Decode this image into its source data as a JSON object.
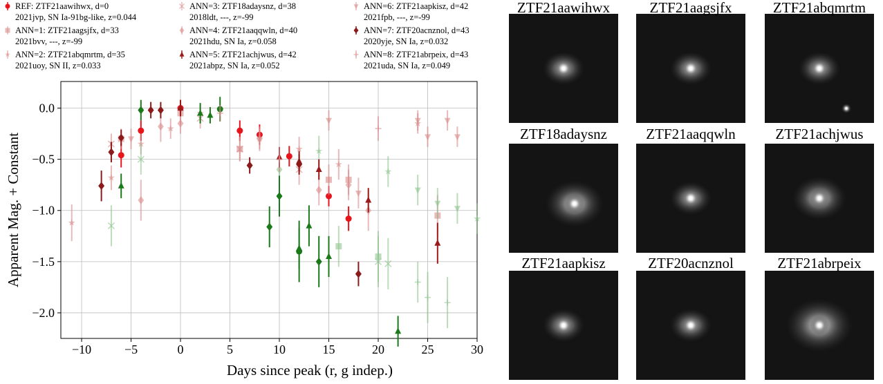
{
  "chart_data": {
    "type": "scatter",
    "xlabel": "Days since peak (r, g indep.)",
    "ylabel": "Apparent Mag. + Constant",
    "xlim": [
      -12.1,
      30
    ],
    "ylim": [
      -2.25,
      0.26
    ],
    "xticks": [
      {
        "value": -10,
        "label": "−10"
      },
      {
        "value": -5,
        "label": "−5"
      },
      0,
      5,
      10,
      15,
      20,
      25,
      30
    ],
    "yticks": [
      {
        "value": 0,
        "label": "0.0"
      },
      {
        "value": -0.5,
        "label": "−0.5"
      },
      {
        "value": -1,
        "label": "−1.0"
      },
      {
        "value": -1.5,
        "label": "−1.5"
      },
      {
        "value": -2,
        "label": "−2.0"
      }
    ],
    "grid": true,
    "series": [
      {
        "name": "REF: ZTF21aawihwx, d=0\n2021jvp, SN Ia-91bg-like, z=0.044",
        "marker": "circle",
        "color": "#e8141c",
        "g_color": "#1a7a1a",
        "x": [
          -6,
          -4,
          0,
          6,
          8,
          11,
          15,
          17
        ],
        "values": [
          -0.46,
          -0.22,
          0.0,
          -0.22,
          -0.26,
          -0.47,
          -0.86,
          -1.08
        ],
        "errors": [
          0.12,
          0.1,
          0.08,
          0.1,
          0.1,
          0.1,
          0.1,
          0.12
        ],
        "g_x": [
          4,
          12
        ],
        "g_values": [
          -0.01,
          -1.4
        ],
        "g_errors": [
          0.12,
          0.3
        ]
      },
      {
        "name": "ANN=1: ZTF21aagsjfx, d=33\n2021bvv, ---, z=-99",
        "marker": "square",
        "color": "#d98c8c",
        "g_color": "#8fc48f",
        "x": [
          -6,
          0,
          6,
          15,
          17,
          26
        ],
        "values": [
          -0.3,
          -0.05,
          -0.4,
          -0.7,
          -0.7,
          -1.05
        ],
        "errors": [
          0.1,
          0.1,
          0.12,
          0.15,
          0.15,
          0.2
        ],
        "g_x": [
          16,
          20
        ],
        "g_values": [
          -1.35,
          -1.45
        ],
        "g_errors": [
          0.2,
          0.25
        ]
      },
      {
        "name": "ANN=2: ZTF21abqmrtm, d=35\n2021uoy, SN II, z=0.033",
        "marker": "star",
        "color": "#d98c8c",
        "g_color": "#8fc48f",
        "x": [
          -11,
          -7,
          -4,
          -1,
          2,
          8,
          12,
          16,
          24
        ],
        "values": [
          -1.12,
          -0.68,
          -0.35,
          -0.2,
          -0.05,
          -0.3,
          -0.4,
          -0.55,
          -0.15
        ],
        "errors": [
          0.18,
          0.12,
          0.1,
          0.1,
          0.08,
          0.1,
          0.12,
          0.15,
          0.1
        ],
        "g_x": [
          14,
          21,
          30
        ],
        "g_values": [
          -0.42,
          -0.62,
          -1.08
        ],
        "g_errors": [
          0.15,
          0.15,
          0.15
        ]
      },
      {
        "name": "ANN=3: ZTF18adaysnz, d=38\n2018ldt, ---, z=-99",
        "marker": "x",
        "color": "#d98c8c",
        "g_color": "#8fc48f",
        "x": [
          -7,
          2,
          6,
          12
        ],
        "values": [
          -0.35,
          -0.1,
          -0.4,
          -0.6
        ],
        "errors": [
          0.1,
          0.1,
          0.12,
          0.15
        ],
        "g_x": [
          -7,
          -4,
          20,
          21
        ],
        "g_values": [
          -1.15,
          -0.5,
          -1.5,
          -1.52
        ],
        "g_errors": [
          0.2,
          0.15,
          0.25,
          0.25
        ]
      },
      {
        "name": "ANN=4: ZTF21aaqqwln, d=40\n2021hdu, SN Ia, z=0.058",
        "marker": "diamond",
        "color": "#d98c8c",
        "g_color": "#8fc48f",
        "x": [
          -4,
          -2,
          0,
          8,
          14,
          17,
          19
        ],
        "values": [
          -0.9,
          -0.18,
          -0.15,
          -0.3,
          -0.8,
          -0.75,
          -1.0
        ],
        "errors": [
          0.2,
          0.15,
          0.1,
          0.12,
          0.15,
          0.15,
          0.2
        ],
        "g_x": [
          10
        ],
        "g_values": [
          -0.6
        ],
        "g_errors": [
          0.2
        ]
      },
      {
        "name": "ANN=5: ZTF21achjwus, d=42\n2021abpz, SN Ia, z=0.052",
        "marker": "triangle",
        "color": "#9b1b1b",
        "g_color": "#1a7a1a",
        "x": [
          0,
          10,
          12,
          14,
          19,
          26
        ],
        "values": [
          0.0,
          -0.48,
          -0.52,
          -0.6,
          -0.9,
          -1.32
        ],
        "errors": [
          0.08,
          0.1,
          0.1,
          0.1,
          0.12,
          0.2
        ],
        "g_x": [
          -6,
          2,
          3,
          12,
          13,
          15,
          22
        ],
        "g_values": [
          -0.76,
          -0.05,
          -0.07,
          -1.37,
          -1.15,
          -1.45,
          -2.18
        ],
        "g_errors": [
          0.12,
          0.1,
          0.08,
          0.2,
          0.2,
          0.2,
          0.15
        ]
      },
      {
        "name": "ANN=6: ZTF21aapkisz, d=42\n2021fpb, ---, z=-99",
        "marker": "triangle-down",
        "color": "#d98c8c",
        "g_color": "#8fc48f",
        "x": [
          -5,
          15,
          18,
          24,
          25,
          27,
          28
        ],
        "values": [
          -0.3,
          -0.12,
          -0.83,
          -0.12,
          -0.28,
          -0.12,
          -0.28
        ],
        "errors": [
          0.1,
          0.1,
          0.15,
          0.1,
          0.1,
          0.1,
          0.1
        ],
        "g_x": [
          24,
          26,
          28
        ],
        "g_values": [
          -0.8,
          -0.93,
          -0.98
        ],
        "g_errors": [
          0.15,
          0.15,
          0.15
        ]
      },
      {
        "name": "ANN=7: ZTF20acnznol, d=43\n2020yje, SN Ia, z=0.032",
        "marker": "diamond",
        "color": "#8b1a1a",
        "g_color": "#1a7a1a",
        "x": [
          -8,
          -7,
          -6,
          -3,
          -2,
          7,
          12,
          18
        ],
        "values": [
          -0.76,
          -0.43,
          -0.29,
          -0.02,
          -0.02,
          -0.56,
          -0.55,
          -1.62
        ],
        "errors": [
          0.15,
          0.1,
          0.08,
          0.08,
          0.08,
          0.08,
          0.1,
          0.12
        ],
        "g_x": [
          -4,
          9,
          10,
          14
        ],
        "g_values": [
          -0.02,
          -1.16,
          -0.86,
          -1.5
        ],
        "g_errors": [
          0.1,
          0.2,
          0.2,
          0.25
        ]
      },
      {
        "name": "ANN=8: ZTF21abrpeix, d=43\n2021uda, SN Ia, z=0.049",
        "marker": "plus",
        "color": "#d98c8c",
        "g_color": "#8fc48f",
        "x": [
          4,
          10,
          20
        ],
        "values": [
          -0.05,
          -0.5,
          -0.2
        ],
        "errors": [
          0.08,
          0.12,
          0.12
        ],
        "g_x": [
          24,
          25,
          27
        ],
        "g_values": [
          -1.7,
          -1.85,
          -1.9
        ],
        "g_errors": [
          0.2,
          0.25,
          0.25
        ]
      }
    ]
  },
  "thumbnails": [
    "ZTF21aawihwx",
    "ZTF21aagsjfx",
    "ZTF21abqmrtm",
    "ZTF18adaysnz",
    "ZTF21aaqqwln",
    "ZTF21achjwus",
    "ZTF21aapkisz",
    "ZTF20acnznol",
    "ZTF21abrpeix"
  ]
}
